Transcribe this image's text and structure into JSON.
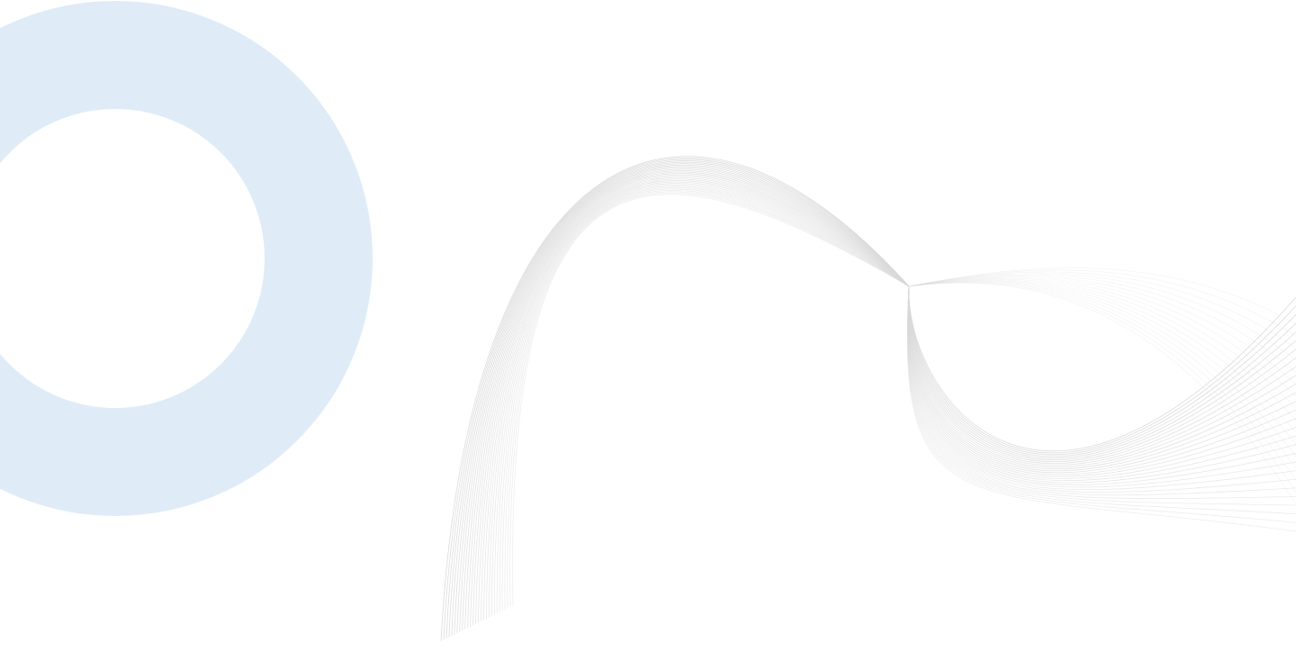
{
  "background": {
    "color": "#ffffff"
  },
  "decor": {
    "ring": {
      "icon": "ring-shape",
      "color": "#dfecf7"
    },
    "wave": {
      "icon": "line-wave-pattern",
      "stroke_color": "#d9d9d9"
    }
  }
}
